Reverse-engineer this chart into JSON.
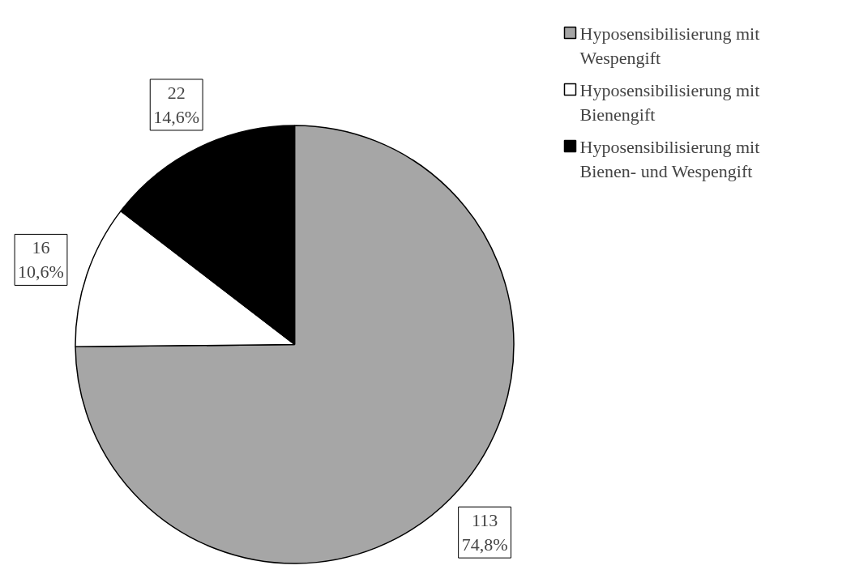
{
  "chart_data": {
    "type": "pie",
    "categories": [
      "Hyposensibilisierung mit Wespengift",
      "Hyposensibilisierung mit Bienengift",
      "Hyposensibilisierung mit Bienen- und Wespengift"
    ],
    "values": [
      113,
      16,
      22
    ],
    "colors": [
      "#a6a6a6",
      "#ffffff",
      "#000000"
    ],
    "value_labels": [
      "113\n74,8%",
      "16\n10,6%",
      "22\n14,6%"
    ],
    "legend": "top right"
  }
}
